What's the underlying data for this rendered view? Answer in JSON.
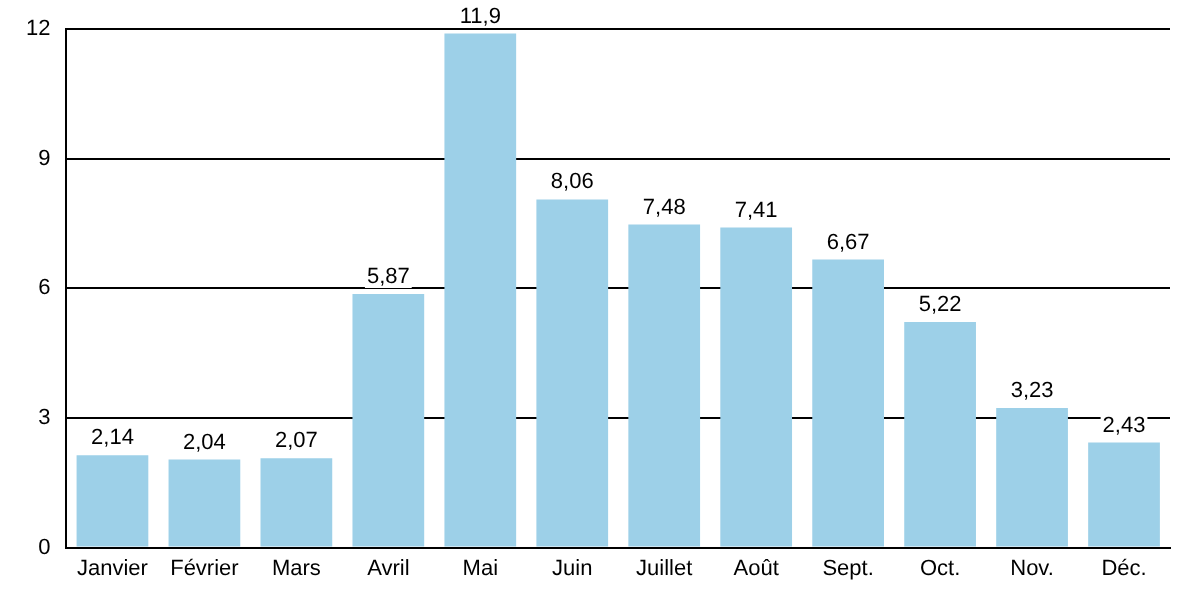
{
  "chart_data": {
    "type": "bar",
    "categories": [
      "Janvier",
      "Février",
      "Mars",
      "Avril",
      "Mai",
      "Juin",
      "Juillet",
      "Août",
      "Sept.",
      "Oct.",
      "Nov.",
      "Déc."
    ],
    "values": [
      2.14,
      2.04,
      2.07,
      5.87,
      11.9,
      8.06,
      7.48,
      7.41,
      6.67,
      5.22,
      3.23,
      2.43
    ],
    "value_labels": [
      "2,14",
      "2,04",
      "2,07",
      "5,87",
      "11,9",
      "8,06",
      "7,48",
      "7,41",
      "6,67",
      "5,22",
      "3,23",
      "2,43"
    ],
    "color": "#9dd0e8",
    "ylim": [
      0,
      12
    ],
    "yticks": [
      0,
      3,
      6,
      9,
      12
    ],
    "grid": "y",
    "legend": false
  }
}
